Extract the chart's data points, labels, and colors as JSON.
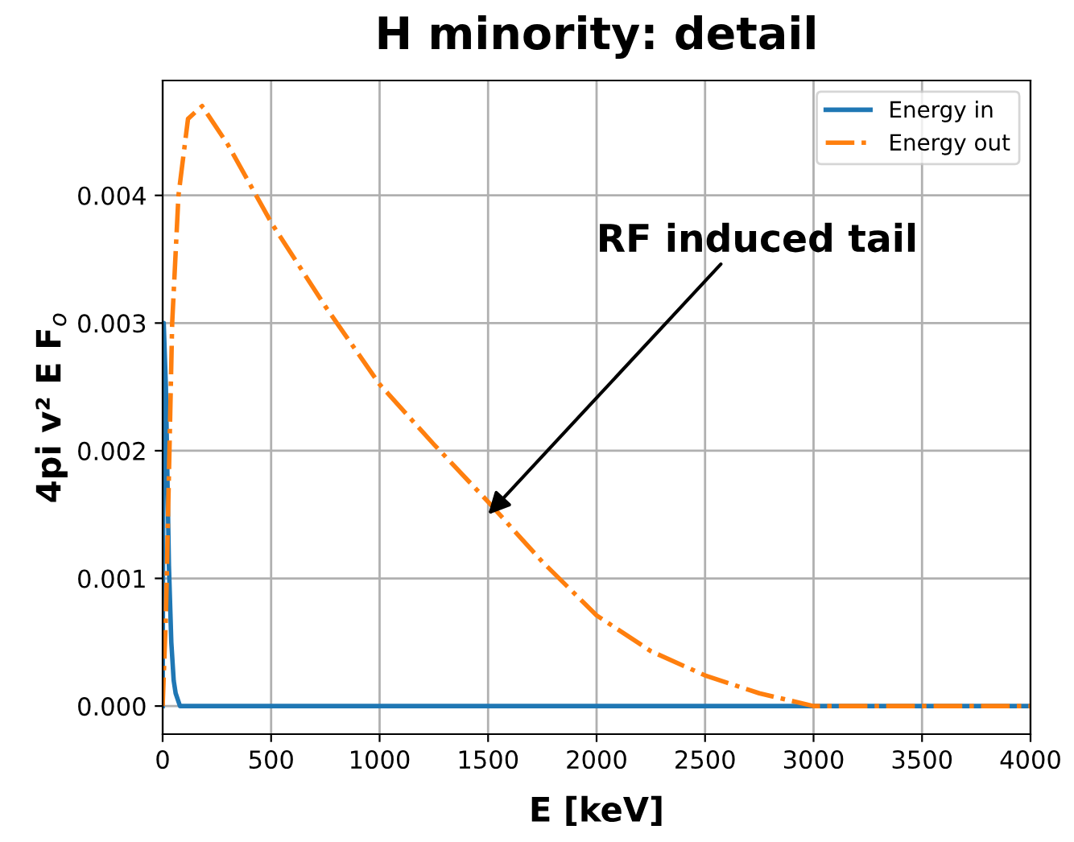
{
  "chart_data": {
    "type": "line",
    "title": "H minority: detail",
    "xlabel": "E [keV]",
    "ylabel": "4pi v² E F$_{o}$",
    "series": [
      {
        "name": "Energy in",
        "color": "#1f77b4",
        "line_style": "solid",
        "x": [
          0,
          5,
          15,
          29,
          40,
          51,
          60,
          80,
          100,
          4000
        ],
        "values": [
          0,
          0.003,
          0.0025,
          0.0011,
          0.0005,
          0.0002,
          0.0001,
          0,
          0,
          0
        ]
      },
      {
        "name": "Energy out",
        "color": "#ff7f0e",
        "line_style": "dashdot",
        "x": [
          0,
          15,
          44,
          73,
          117,
          182,
          300,
          503,
          750,
          1000,
          1250,
          1500,
          1750,
          2000,
          2250,
          2500,
          2750,
          3000,
          3500,
          4000
        ],
        "values": [
          0,
          0.0007,
          0.003,
          0.004,
          0.0046,
          0.0047,
          0.0044,
          0.00378,
          0.00313,
          0.00252,
          0.00205,
          0.0016,
          0.00113,
          0.00071,
          0.00043,
          0.00024,
          0.0001,
          0,
          0,
          0
        ]
      }
    ],
    "annotations": [
      {
        "text": "RF induced tail",
        "x": 1500,
        "y": 0.0015
      }
    ],
    "xlim": [
      0,
      4000
    ],
    "xticks": [
      0,
      500,
      1000,
      1500,
      2000,
      2500,
      3000,
      3500,
      4000
    ],
    "ylim": [
      -0.00022,
      0.0049
    ],
    "yticks": [
      {
        "value": 0,
        "label": "0.000"
      },
      {
        "value": 0.001,
        "label": "0.001"
      },
      {
        "value": 0.002,
        "label": "0.002"
      },
      {
        "value": 0.003,
        "label": "0.003"
      },
      {
        "value": 0.004,
        "label": "0.004"
      }
    ],
    "grid": true,
    "legend": "top right"
  }
}
